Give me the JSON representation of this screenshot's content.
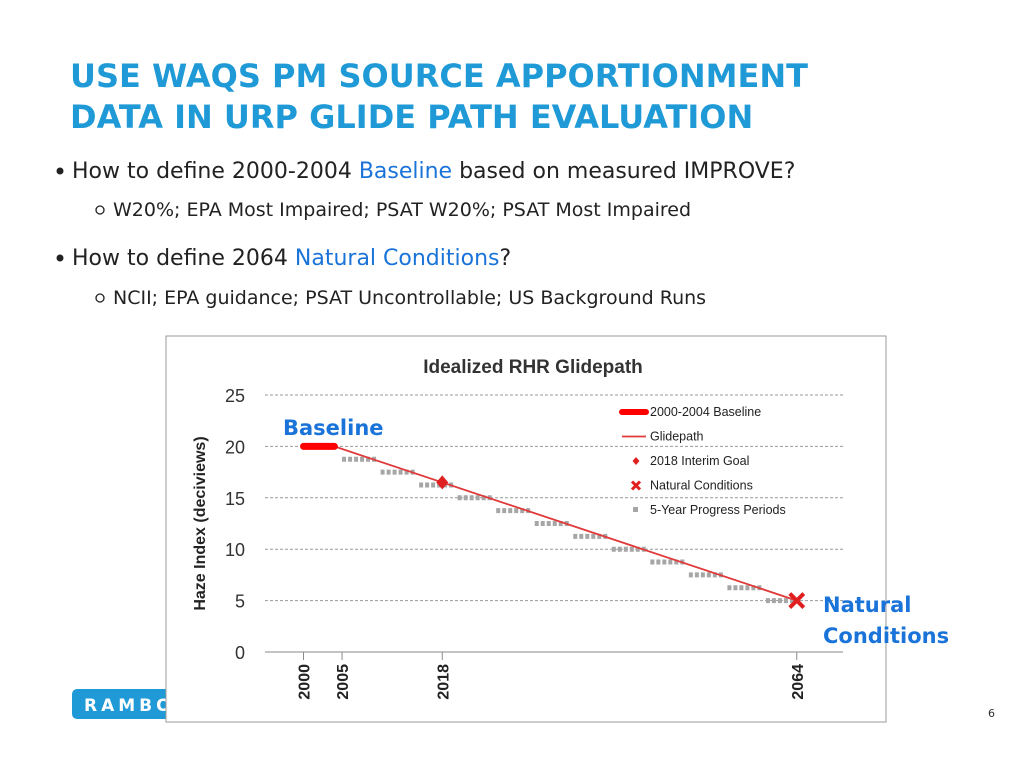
{
  "slide": {
    "title": [
      "USE WAQS PM SOURCE APPORTIONMENT",
      "DATA IN URP GLIDE PATH EVALUATION"
    ],
    "bullets": [
      {
        "parts": [
          "How to define 2000-2004 ",
          "Baseline",
          " based on measured IMPROVE?"
        ],
        "sub": "W20%; EPA Most Impaired; PSAT W20%; PSAT Most Impaired"
      },
      {
        "parts": [
          "How to define 2064 ",
          "Natural Conditions",
          "?"
        ],
        "sub": "NCII; EPA guidance; PSAT Uncontrollable; US Background Runs"
      }
    ],
    "logo": "RAMBOLL",
    "page_number": "6"
  },
  "chart_data": {
    "type": "line",
    "title": "Idealized RHR Glidepath",
    "y_label": "Haze Index (deciviews)",
    "annotations": {
      "baseline": "Baseline",
      "natural": [
        "Natural",
        "Conditions"
      ]
    },
    "xlim": [
      1995,
      2070
    ],
    "xticks": [
      2000,
      2005,
      2018,
      2064
    ],
    "ylim": [
      0,
      25
    ],
    "yticks": [
      0,
      5,
      10,
      15,
      20,
      25
    ],
    "grid": true,
    "series": [
      {
        "name": "2000-2004 Baseline",
        "color": "#ff0000",
        "style": "thick-line",
        "x": [
          2000,
          2004
        ],
        "values": [
          20,
          20
        ]
      },
      {
        "name": "Glidepath",
        "color": "#e03a3a",
        "style": "line",
        "x": [
          2004,
          2064
        ],
        "values": [
          20,
          5
        ]
      },
      {
        "name": "2018 Interim Goal",
        "color": "#e02020",
        "style": "diamond",
        "x": [
          2018
        ],
        "values": [
          16.5
        ]
      },
      {
        "name": "Natural Conditions",
        "color": "#e02020",
        "style": "cross",
        "x": [
          2064
        ],
        "values": [
          5
        ]
      },
      {
        "name": "5-Year Progress Periods",
        "color": "#a6a6a6",
        "style": "dash",
        "x": [
          2005,
          2010,
          2015,
          2020,
          2025,
          2030,
          2035,
          2040,
          2045,
          2050,
          2055,
          2060
        ],
        "values": [
          18.75,
          17.5,
          16.25,
          15,
          13.75,
          12.5,
          11.25,
          10,
          8.75,
          7.5,
          6.25,
          5
        ]
      }
    ]
  }
}
